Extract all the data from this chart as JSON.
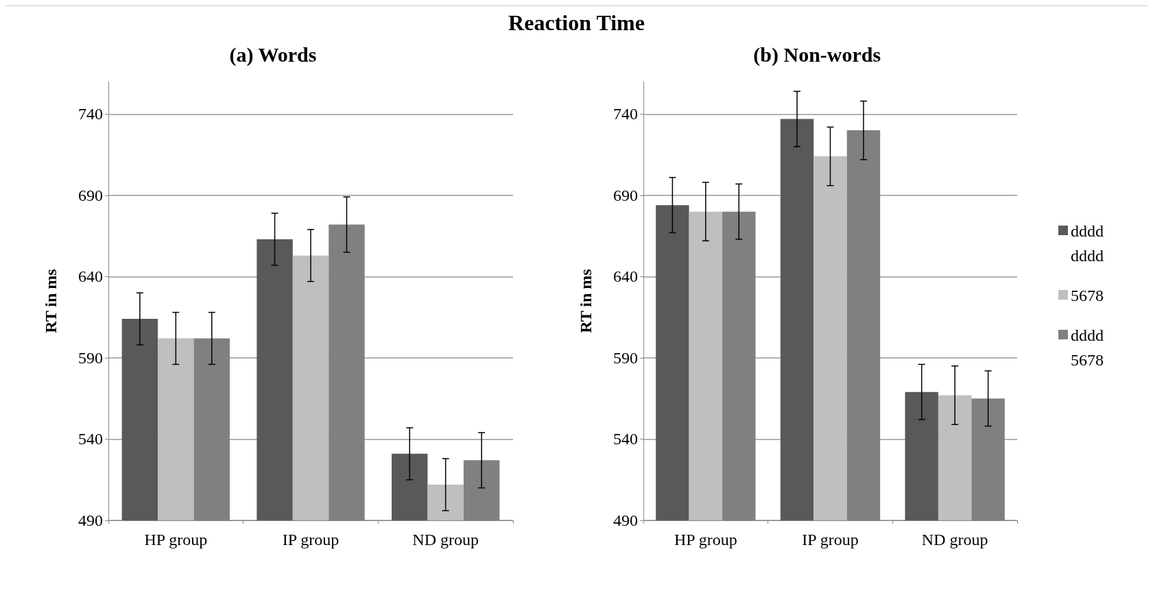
{
  "chart_data": [
    {
      "type": "bar",
      "title": "(a) Words",
      "ylabel": "RT in ms",
      "annotations": [
        "Reaction Time"
      ],
      "categories": [
        "HP group",
        "IP group",
        "ND group"
      ],
      "series": [
        {
          "color": "#595959",
          "values": [
            614,
            663,
            531
          ],
          "errors": [
            16,
            16,
            16
          ]
        },
        {
          "color": "#bfbfbf",
          "values": [
            602,
            653,
            512
          ],
          "errors": [
            16,
            16,
            16
          ]
        },
        {
          "color": "#808080",
          "values": [
            602,
            672,
            527
          ],
          "errors": [
            16,
            17,
            17
          ]
        }
      ],
      "ylim": [
        490,
        760
      ],
      "yticks": [
        490,
        540,
        590,
        640,
        690,
        740
      ],
      "grid": "y",
      "legend": false
    },
    {
      "type": "bar",
      "title": "(b) Non-words",
      "ylabel": "RT in ms",
      "categories": [
        "HP group",
        "IP group",
        "ND group"
      ],
      "series": [
        {
          "name": "dddd dddd",
          "color": "#595959",
          "values": [
            684,
            737,
            569
          ],
          "errors": [
            17,
            17,
            17
          ]
        },
        {
          "name": "5678",
          "color": "#bfbfbf",
          "values": [
            680,
            714,
            567
          ],
          "errors": [
            18,
            18,
            18
          ]
        },
        {
          "name": "dddd 5678",
          "color": "#808080",
          "values": [
            680,
            730,
            565
          ],
          "errors": [
            17,
            18,
            17
          ]
        }
      ],
      "ylim": [
        490,
        760
      ],
      "yticks": [
        490,
        540,
        590,
        640,
        690,
        740
      ],
      "grid": "y",
      "legend": "right"
    }
  ]
}
